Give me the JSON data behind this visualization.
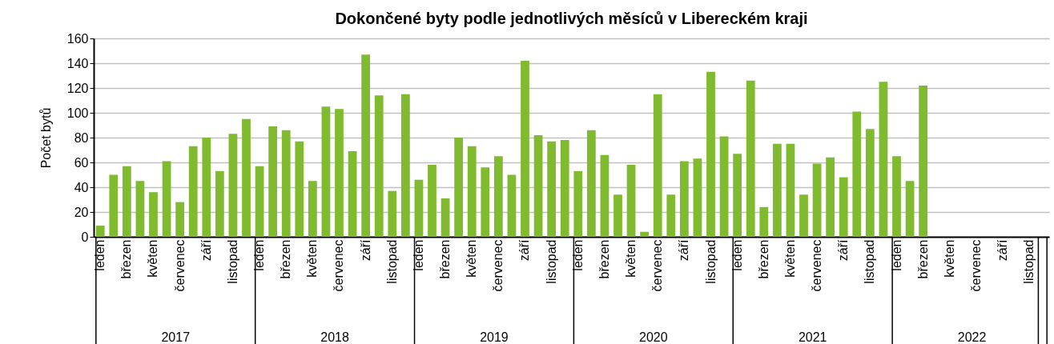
{
  "chart_data": {
    "type": "bar",
    "title": "Dokončené byty podle jednotlivých měsíců v Libereckém kraji",
    "ylabel": "Počet bytů",
    "categories": [
      "leden",
      null,
      "březen",
      null,
      "květen",
      null,
      "červenec",
      null,
      "září",
      null,
      "listopad",
      null,
      "leden",
      null,
      "březen",
      null,
      "květen",
      null,
      "červenec",
      null,
      "září",
      null,
      "listopad",
      null,
      "leden",
      null,
      "březen",
      null,
      "květen",
      null,
      "červenec",
      null,
      "září",
      null,
      "listopad",
      null,
      "leden",
      null,
      "březen",
      null,
      "květen",
      null,
      "červenec",
      null,
      "září",
      null,
      "listopad",
      null,
      "leden",
      null,
      "březen",
      null,
      "květen",
      null,
      "červenec",
      null,
      "září",
      null,
      "listopad",
      null,
      "leden",
      null,
      "březen",
      null,
      "květen",
      null,
      "červenec",
      null,
      "září",
      null,
      "listopad",
      null
    ],
    "values": [
      9,
      50,
      57,
      45,
      36,
      61,
      28,
      73,
      80,
      53,
      83,
      95,
      57,
      89,
      86,
      77,
      45,
      105,
      103,
      69,
      147,
      114,
      37,
      115,
      46,
      58,
      31,
      80,
      73,
      56,
      65,
      50,
      142,
      82,
      77,
      78,
      53,
      86,
      66,
      34,
      58,
      4,
      115,
      34,
      61,
      63,
      133,
      81,
      67,
      126,
      24,
      75,
      75,
      34,
      59,
      64,
      48,
      101,
      87,
      125,
      65,
      45,
      122,
      null,
      null,
      null,
      null,
      null,
      null,
      null,
      null,
      null
    ],
    "color": "#7fba2f",
    "ylim": [
      0,
      160
    ],
    "yticks": [
      0,
      20,
      40,
      60,
      80,
      100,
      120,
      140,
      160
    ],
    "grid": "y",
    "annotations": [
      "2017",
      "2018",
      "2019",
      "2020",
      "2021",
      "2022"
    ]
  }
}
